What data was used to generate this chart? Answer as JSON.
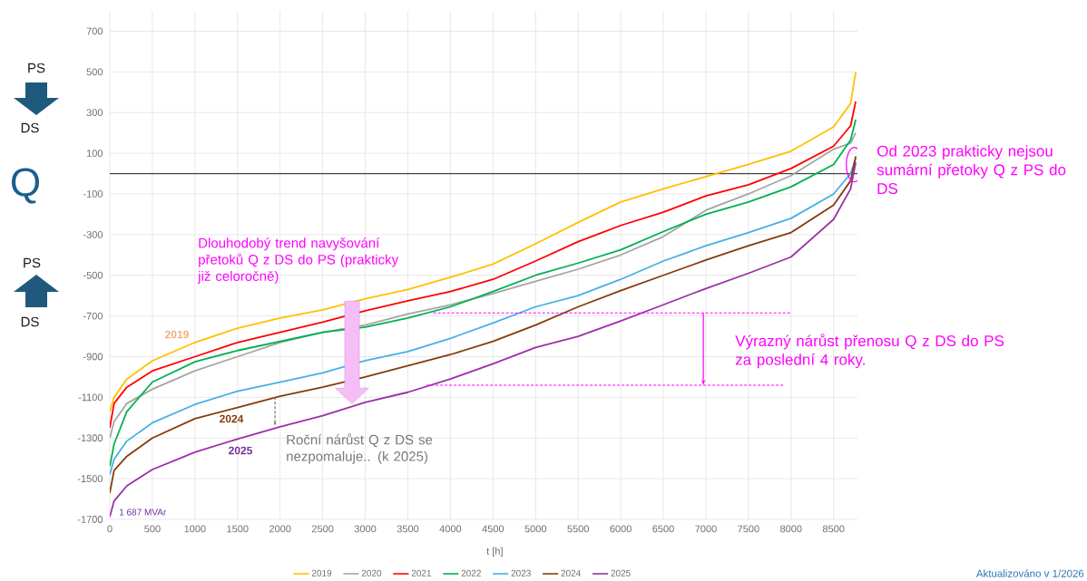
{
  "chart_data": {
    "type": "line",
    "xlabel": "t [h]",
    "x": [
      0,
      50,
      200,
      500,
      1000,
      1500,
      2000,
      2500,
      3000,
      3500,
      4000,
      4500,
      5000,
      5500,
      6000,
      6500,
      7000,
      7500,
      8000,
      8500,
      8700,
      8760
    ],
    "series": [
      {
        "name": "2019",
        "color": "#ffc000",
        "values": [
          -1170,
          -1100,
          -1010,
          -920,
          -830,
          -760,
          -710,
          -670,
          -615,
          -570,
          -510,
          -445,
          -345,
          -240,
          -140,
          -75,
          -15,
          45,
          110,
          230,
          345,
          500
        ]
      },
      {
        "name": "2020",
        "color": "#a5a5a5",
        "values": [
          -1300,
          -1220,
          -1130,
          -1060,
          -970,
          -900,
          -830,
          -780,
          -745,
          -690,
          -645,
          -590,
          -530,
          -470,
          -400,
          -310,
          -180,
          -100,
          -10,
          120,
          150,
          200
        ]
      },
      {
        "name": "2021",
        "color": "#ff0000",
        "values": [
          -1250,
          -1130,
          -1050,
          -970,
          -900,
          -830,
          -780,
          -730,
          -675,
          -625,
          -580,
          -520,
          -430,
          -335,
          -255,
          -190,
          -110,
          -55,
          25,
          135,
          235,
          355
        ]
      },
      {
        "name": "2022",
        "color": "#00b050",
        "values": [
          -1440,
          -1330,
          -1170,
          -1025,
          -925,
          -870,
          -825,
          -780,
          -755,
          -710,
          -655,
          -580,
          -500,
          -440,
          -375,
          -285,
          -200,
          -140,
          -65,
          45,
          165,
          265
        ]
      },
      {
        "name": "2023",
        "color": "#45b0e5",
        "values": [
          -1480,
          -1405,
          -1315,
          -1225,
          -1135,
          -1070,
          -1025,
          -980,
          -920,
          -875,
          -810,
          -735,
          -655,
          -600,
          -520,
          -430,
          -355,
          -290,
          -220,
          -100,
          0,
          75
        ]
      },
      {
        "name": "2024",
        "color": "#843c0c",
        "values": [
          -1570,
          -1460,
          -1390,
          -1300,
          -1205,
          -1150,
          -1095,
          -1050,
          -1000,
          -945,
          -890,
          -825,
          -745,
          -655,
          -575,
          -500,
          -425,
          -355,
          -290,
          -155,
          -35,
          85
        ]
      },
      {
        "name": "2025",
        "color": "#9b30a8",
        "values": [
          -1687,
          -1610,
          -1535,
          -1455,
          -1370,
          -1305,
          -1245,
          -1190,
          -1125,
          -1075,
          -1010,
          -935,
          -855,
          -800,
          -725,
          -645,
          -565,
          -490,
          -410,
          -225,
          -75,
          55
        ]
      },
      {
        "type": "line",
        "color": "#ff00ff",
        "line_style": "dashed",
        "x": [
          3800,
          8000
        ],
        "values": [
          -685,
          -685
        ]
      },
      {
        "type": "line",
        "color": "#ff00ff",
        "line_style": "dashed",
        "x": [
          3720,
          7910
        ],
        "values": [
          -1040,
          -1040
        ]
      }
    ],
    "ref_lines": [
      {
        "axis": "y",
        "value": 0,
        "color": "#404040"
      }
    ],
    "annotations": [
      "Dlouhodobý trend navyšování přetoků Q z DS do PS (prakticky již celoročně)",
      "Roční nárůst Q z DS se nezpomaluje.. (k 2025)",
      "Výrazný nárůst přenosu Q z DS do PS za poslední 4 roky.",
      "Od 2023 prakticky nejsou sumární přetoky Q z PS do DS",
      "Q",
      "PS",
      "DS",
      "PS",
      "DS",
      "2019",
      "2024",
      "2025",
      "1 687 MVAr",
      "Aktualizováno v 1/2026"
    ],
    "xlim": [
      0,
      8780
    ],
    "ylim": [
      -1700,
      800
    ],
    "xticks": [
      0,
      500,
      1000,
      1500,
      2000,
      2500,
      3000,
      3500,
      4000,
      4500,
      5000,
      5500,
      6000,
      6500,
      7000,
      7500,
      8000,
      8500
    ],
    "yticks": [
      700,
      500,
      300,
      100,
      -100,
      -300,
      -500,
      -700,
      -900,
      -1100,
      -1300,
      -1500,
      -1700
    ],
    "grid": true,
    "legend": "bottom",
    "marker": "none"
  }
}
